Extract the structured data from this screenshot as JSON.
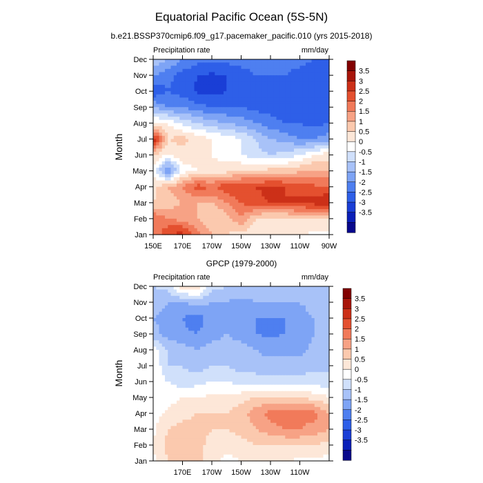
{
  "figure": {
    "title": "Equatorial Pacific Ocean (5S-5N)"
  },
  "palette": {
    "colors": [
      "#08088c",
      "#0a1fb8",
      "#1a3ed6",
      "#2e5fe8",
      "#4e7ff0",
      "#7ea4f5",
      "#a8c2f8",
      "#d0e0fb",
      "#ffffff",
      "#fde7d8",
      "#fbc9ae",
      "#f7a285",
      "#f17a5a",
      "#e4502f",
      "#cc3018",
      "#a8150a",
      "#820000"
    ],
    "levels": [
      -3.5,
      -3,
      -2.5,
      -2,
      -1.5,
      -1,
      -0.5,
      0,
      0.5,
      1,
      1.5,
      2,
      2.5,
      3,
      3.5
    ]
  },
  "chart_data": [
    {
      "type": "heatmap",
      "subtitle": "b.e21.BSSP370cmip6.f09_g17.pacemaker_pacific.010 (yrs 2015-2018)",
      "left_label": "Precipitation rate",
      "right_label": "mm/day",
      "ylabel": "Month",
      "xlabel": "",
      "x_tick_labels": [
        "150E",
        "170E",
        "170W",
        "150W",
        "130W",
        "110W",
        "90W"
      ],
      "y_tick_labels": [
        "Jan",
        "Feb",
        "Mar",
        "Apr",
        "May",
        "Jun",
        "Jul",
        "Aug",
        "Sep",
        "Oct",
        "Nov",
        "Dec"
      ],
      "xlim": [
        "150E",
        "90W"
      ],
      "colorbar_labels": [
        "3.5",
        "3",
        "2.5",
        "2",
        "1.5",
        "1",
        "0.5",
        "0",
        "-0.5",
        "-1",
        "-1.5",
        "-2",
        "-2.5",
        "-3",
        "-3.5"
      ],
      "months": [
        1,
        2,
        3,
        4,
        5,
        6,
        7,
        8,
        9,
        10,
        11,
        12
      ],
      "lon_east": [
        150,
        160,
        170,
        180,
        190,
        200,
        210,
        220,
        230,
        240,
        250,
        260,
        270
      ],
      "values": [
        [
          2.0,
          3.0,
          3.2,
          2.2,
          1.5,
          1.0,
          0.8,
          0.6,
          0.5,
          0.5,
          0.5,
          0.4,
          0.4
        ],
        [
          2.5,
          2.0,
          1.8,
          1.5,
          1.0,
          1.2,
          2.0,
          1.0,
          0.8,
          0.8,
          1.0,
          1.0,
          0.8
        ],
        [
          1.0,
          1.2,
          1.5,
          1.5,
          1.5,
          2.0,
          2.5,
          2.8,
          3.0,
          3.0,
          3.1,
          3.2,
          3.6
        ],
        [
          0.8,
          1.5,
          2.0,
          2.8,
          2.5,
          2.8,
          3.0,
          3.0,
          3.2,
          3.0,
          2.8,
          2.6,
          2.5
        ],
        [
          0.5,
          -1.8,
          0.3,
          0.5,
          0.6,
          0.8,
          1.0,
          1.0,
          1.2,
          1.2,
          1.4,
          1.6,
          1.5
        ],
        [
          1.0,
          0.5,
          0.8,
          0.6,
          0.5,
          0.3,
          0.0,
          -0.3,
          -0.5,
          -0.3,
          0.0,
          0.5,
          0.8
        ],
        [
          3.5,
          1.0,
          1.2,
          0.8,
          0.5,
          0.3,
          0.0,
          -0.5,
          -1.0,
          -1.2,
          -1.5,
          -1.5,
          -1.2
        ],
        [
          0.5,
          0.5,
          -0.2,
          -0.5,
          -0.8,
          -1.0,
          -1.2,
          -1.5,
          -1.8,
          -2.0,
          -2.0,
          -2.2,
          -2.0
        ],
        [
          -1.0,
          -1.5,
          -1.5,
          -1.8,
          -2.0,
          -2.0,
          -2.0,
          -2.2,
          -2.2,
          -2.3,
          -2.3,
          -2.4,
          -2.5
        ],
        [
          -2.5,
          -2.0,
          -2.3,
          -2.6,
          -2.7,
          -2.5,
          -2.2,
          -2.2,
          -2.3,
          -2.3,
          -2.3,
          -2.4,
          -2.5
        ],
        [
          -1.5,
          -1.8,
          -2.2,
          -2.5,
          -2.6,
          -2.5,
          -2.2,
          -2.0,
          -2.0,
          -2.0,
          -2.2,
          -2.3,
          -2.5
        ],
        [
          -0.5,
          -1.0,
          -1.5,
          -1.8,
          -1.8,
          -1.8,
          -1.8,
          -1.8,
          -1.8,
          -1.8,
          -1.8,
          -2.0,
          -2.0
        ]
      ]
    },
    {
      "type": "heatmap",
      "subtitle": "GPCP (1979-2000)",
      "left_label": "Precipitation rate",
      "right_label": "mm/day",
      "ylabel": "Month",
      "xlabel": "",
      "x_tick_labels": [
        "170E",
        "170W",
        "150W",
        "130W",
        "110W"
      ],
      "y_tick_labels": [
        "Jan",
        "Feb",
        "Mar",
        "Apr",
        "May",
        "Jun",
        "Jul",
        "Aug",
        "Sep",
        "Oct",
        "Nov",
        "Dec"
      ],
      "xlim": [
        "150E",
        "90W"
      ],
      "colorbar_labels": [
        "3.5",
        "3",
        "2.5",
        "2",
        "1.5",
        "1",
        "0.5",
        "0",
        "-0.5",
        "-1",
        "-1.5",
        "-2",
        "-2.5",
        "-3",
        "-3.5"
      ],
      "months": [
        1,
        2,
        3,
        4,
        5,
        6,
        7,
        8,
        9,
        10,
        11,
        12
      ],
      "lon_east": [
        150,
        160,
        170,
        180,
        190,
        200,
        210,
        220,
        230,
        240,
        250,
        260,
        270
      ],
      "values": [
        [
          0.4,
          1.0,
          1.0,
          1.2,
          0.6,
          0.4,
          0.5,
          0.6,
          0.6,
          0.5,
          0.4,
          0.4,
          0.3
        ],
        [
          0.5,
          1.2,
          1.4,
          1.2,
          0.8,
          0.6,
          0.8,
          1.0,
          1.0,
          1.0,
          1.0,
          1.0,
          0.8
        ],
        [
          0.4,
          1.0,
          1.2,
          1.2,
          1.0,
          1.0,
          1.2,
          1.5,
          1.8,
          2.0,
          2.0,
          1.8,
          1.5
        ],
        [
          0.3,
          0.6,
          0.8,
          1.0,
          1.0,
          1.0,
          1.3,
          1.8,
          2.2,
          2.3,
          2.2,
          2.2,
          1.5
        ],
        [
          0.2,
          0.3,
          0.5,
          0.5,
          0.6,
          0.6,
          0.8,
          1.0,
          1.0,
          1.0,
          1.0,
          0.8,
          0.5
        ],
        [
          0.3,
          0.0,
          -0.3,
          -0.2,
          0.0,
          0.0,
          -0.2,
          -0.2,
          -0.3,
          -0.3,
          -0.3,
          -0.3,
          -0.3
        ],
        [
          0.5,
          -0.5,
          -0.5,
          -0.8,
          -0.5,
          -0.5,
          -0.8,
          -0.8,
          -0.8,
          -0.8,
          -0.8,
          -0.6,
          -0.6
        ],
        [
          0.3,
          -0.6,
          -0.8,
          -1.0,
          -0.8,
          -0.8,
          -0.8,
          -1.0,
          -1.2,
          -1.2,
          -1.2,
          -0.8,
          -0.6
        ],
        [
          -0.8,
          -1.2,
          -1.4,
          -1.5,
          -1.2,
          -1.0,
          -1.2,
          -1.5,
          -1.6,
          -1.5,
          -1.5,
          -1.0,
          -0.6
        ],
        [
          -1.0,
          -1.2,
          -1.5,
          -1.8,
          -1.2,
          -1.2,
          -1.3,
          -1.5,
          -1.5,
          -1.5,
          -1.2,
          -1.0,
          -0.8
        ],
        [
          -0.8,
          -1.0,
          -1.0,
          -0.8,
          -1.0,
          -1.0,
          -1.2,
          -1.0,
          -1.0,
          -1.0,
          -1.0,
          -0.8,
          -0.6
        ],
        [
          -0.5,
          -0.3,
          0.8,
          1.0,
          -0.3,
          -0.5,
          -0.5,
          -0.5,
          -0.5,
          -0.5,
          -0.5,
          -0.5,
          -0.5
        ]
      ]
    }
  ]
}
